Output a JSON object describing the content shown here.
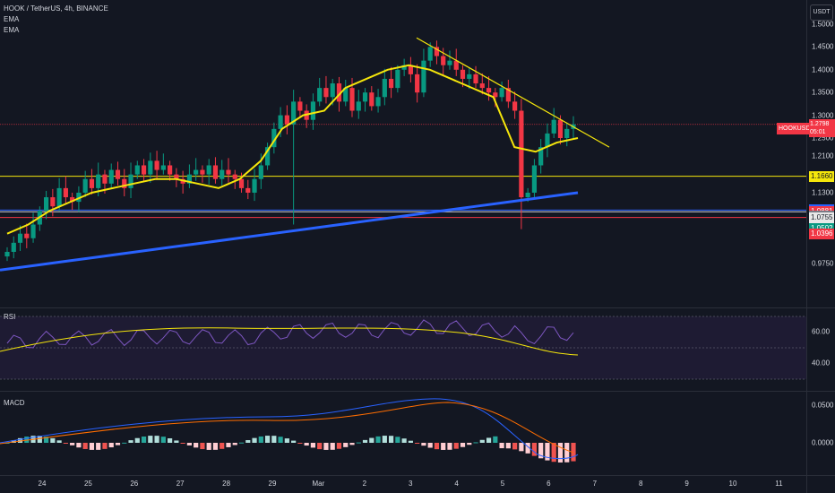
{
  "header": {
    "symbol_line": "HOOK / TetherUS, 4h, BINANCE",
    "indicator1": "EMA",
    "indicator2": "EMA",
    "currency_button": "USDT"
  },
  "price_axis": {
    "ticks": [
      "1.5000",
      "1.4500",
      "1.4000",
      "1.3500",
      "1.3000",
      "1.2500",
      "1.2100",
      "1.1300",
      "0.9750"
    ],
    "tick_values": [
      1.5,
      1.45,
      1.4,
      1.35,
      1.3,
      1.25,
      1.21,
      1.13,
      0.975
    ]
  },
  "current": {
    "symbol_tag": "HOOKUSDT",
    "price": "1.2798",
    "countdown": "05:01"
  },
  "levels": [
    {
      "label": "1.1660",
      "value": 1.166,
      "color": "#f5e60b",
      "text_color": "#131722",
      "line_color": "#f5e60b"
    },
    {
      "label": "1.0919",
      "value": 1.0919,
      "color": "#2962ff",
      "text_color": "#ffffff",
      "line_color": "#2962ff"
    },
    {
      "label": "1.0881",
      "value": 1.0881,
      "color": "#f23645",
      "text_color": "#ffffff",
      "line_color": "#d1d4dc"
    },
    {
      "label": "1.0786",
      "value": 1.0786,
      "color": "#787b86",
      "text_color": "#ffffff",
      "line_color": null
    },
    {
      "label": "1.0755",
      "value": 1.0755,
      "color": "#e8e8e8",
      "text_color": "#131722",
      "line_color": "#f23645"
    },
    {
      "label": "1.0502",
      "value": 1.0502,
      "color": "#089981",
      "text_color": "#ffffff",
      "line_color": null
    },
    {
      "label": "1.0396",
      "value": 1.0396,
      "color": "#f23645",
      "text_color": "#ffffff",
      "line_color": null
    }
  ],
  "rsi": {
    "label": "RSI",
    "ticks": [
      "60.00",
      "40.00"
    ],
    "tick_values": [
      60,
      40
    ]
  },
  "macd": {
    "label": "MACD",
    "ticks": [
      "0.0500",
      "0.0000"
    ],
    "tick_values": [
      0.05,
      0.0
    ]
  },
  "time_axis": {
    "labels": [
      "24",
      "25",
      "26",
      "27",
      "28",
      "29",
      "Mar",
      "2",
      "3",
      "4",
      "5",
      "6",
      "7",
      "8",
      "9",
      "10",
      "11"
    ]
  },
  "colors": {
    "background": "#131722",
    "up": "#089981",
    "down": "#f23645",
    "ema_short": "#f5e60b",
    "ema_long": "#2962ff",
    "rsi_line": "#7e57c2",
    "rsi_ma": "#f5e60b"
  },
  "chart_data": {
    "type": "candlestick",
    "x_labels": [
      "24",
      "25",
      "26",
      "27",
      "28",
      "29",
      "Mar",
      "2",
      "3",
      "4",
      "5",
      "6",
      "7",
      "8",
      "9",
      "10",
      "11"
    ],
    "ylim": [
      0.96,
      1.51
    ],
    "ema_short_approx": [
      1.04,
      1.06,
      1.09,
      1.11,
      1.13,
      1.14,
      1.15,
      1.16,
      1.16,
      1.15,
      1.14,
      1.16,
      1.2,
      1.27,
      1.3,
      1.31,
      1.36,
      1.38,
      1.4,
      1.41,
      1.4,
      1.38,
      1.36,
      1.34,
      1.23,
      1.22,
      1.24,
      1.25
    ],
    "ema_long_approx": [
      0.96,
      0.97,
      0.98,
      0.99,
      1.0,
      1.01,
      1.02,
      1.03,
      1.04,
      1.05,
      1.06,
      1.07,
      1.08,
      1.09,
      1.1,
      1.11,
      1.12,
      1.13
    ],
    "trendline": {
      "from": [
        3.0,
        1.47
      ],
      "to": [
        7.3,
        1.23
      ]
    }
  }
}
